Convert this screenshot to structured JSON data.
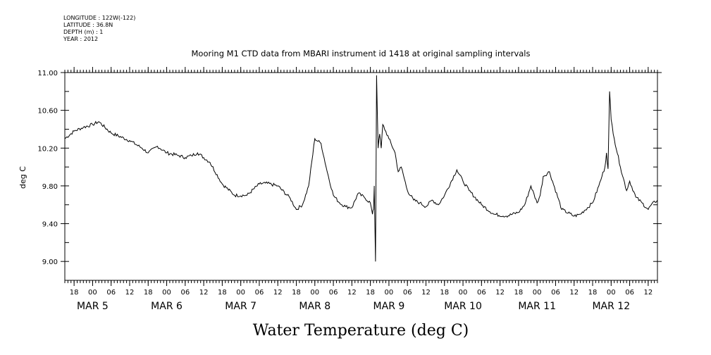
{
  "header": {
    "longitude": "LONGITUDE : 122W(-122)",
    "latitude": "LATITUDE : 36.8N",
    "depth": "DEPTH (m) : 1",
    "year": "YEAR : 2012"
  },
  "chart_data": {
    "type": "line",
    "title": "Mooring M1 CTD data from MBARI instrument id 1418 at original sampling intervals",
    "xlabel": "Water Temperature (deg C)",
    "ylabel": "deg C",
    "ylim": [
      8.8,
      11.0
    ],
    "xlim": [
      "2012-03-04T15:00",
      "2012-03-12T15:00"
    ],
    "y_ticks": [
      9.0,
      9.4,
      9.8,
      10.2,
      10.6,
      11.0
    ],
    "y_tick_labels": [
      "9.00",
      "9.40",
      "9.80",
      "10.20",
      "10.60",
      "11.00"
    ],
    "x_hour_ticks": [
      "18",
      "00",
      "06",
      "12",
      "18",
      "00",
      "06",
      "12",
      "18",
      "00",
      "06",
      "12",
      "18",
      "00",
      "06",
      "12",
      "18",
      "00",
      "06",
      "12",
      "18",
      "00",
      "06",
      "12",
      "18",
      "00",
      "06",
      "12",
      "18",
      "00",
      "06",
      "12"
    ],
    "x_day_labels": [
      "MAR  5",
      "MAR  6",
      "MAR  7",
      "MAR  8",
      "MAR  9",
      "MAR 10",
      "MAR 11",
      "MAR 12"
    ],
    "grid": false,
    "series": [
      {
        "x": [
          "2012-03-04T15:00",
          "2012-03-04T18:00",
          "2012-03-04T21:00",
          "2012-03-05T00:00",
          "2012-03-05T02:00",
          "2012-03-05T06:00",
          "2012-03-05T12:00",
          "2012-03-05T16:00",
          "2012-03-05T18:00",
          "2012-03-05T21:00",
          "2012-03-06T00:00",
          "2012-03-06T04:00",
          "2012-03-06T06:00",
          "2012-03-06T08:00",
          "2012-03-06T10:00",
          "2012-03-06T14:00",
          "2012-03-06T18:00",
          "2012-03-06T22:00",
          "2012-03-07T02:00",
          "2012-03-07T06:00",
          "2012-03-07T08:00",
          "2012-03-07T12:00",
          "2012-03-07T16:00",
          "2012-03-07T18:00",
          "2012-03-07T20:00",
          "2012-03-07T22:00",
          "2012-03-08T00:00",
          "2012-03-08T02:00",
          "2012-03-08T04:00",
          "2012-03-08T06:00",
          "2012-03-08T08:00",
          "2012-03-08T10:00",
          "2012-03-08T12:00",
          "2012-03-08T14:00",
          "2012-03-08T16:00",
          "2012-03-08T18:00",
          "2012-03-08T18:40",
          "2012-03-08T19:00",
          "2012-03-08T19:15",
          "2012-03-08T19:40",
          "2012-03-08T20:00",
          "2012-03-08T20:30",
          "2012-03-08T21:00",
          "2012-03-08T21:30",
          "2012-03-08T22:00",
          "2012-03-09T00:00",
          "2012-03-09T02:00",
          "2012-03-09T03:00",
          "2012-03-09T04:00",
          "2012-03-09T06:00",
          "2012-03-09T08:00",
          "2012-03-09T10:00",
          "2012-03-09T12:00",
          "2012-03-09T14:00",
          "2012-03-09T16:00",
          "2012-03-09T18:00",
          "2012-03-09T22:00",
          "2012-03-10T00:00",
          "2012-03-10T02:00",
          "2012-03-10T06:00",
          "2012-03-10T10:00",
          "2012-03-10T14:00",
          "2012-03-10T18:00",
          "2012-03-10T20:00",
          "2012-03-10T22:00",
          "2012-03-11T00:00",
          "2012-03-11T01:00",
          "2012-03-11T02:00",
          "2012-03-11T04:00",
          "2012-03-11T08:00",
          "2012-03-11T12:00",
          "2012-03-11T14:00",
          "2012-03-11T18:00",
          "2012-03-11T20:00",
          "2012-03-11T21:00",
          "2012-03-11T22:00",
          "2012-03-11T22:30",
          "2012-03-11T23:00",
          "2012-03-11T23:30",
          "2012-03-12T00:00",
          "2012-03-12T01:00",
          "2012-03-12T03:00",
          "2012-03-12T05:00",
          "2012-03-12T06:00",
          "2012-03-12T08:00",
          "2012-03-12T10:00",
          "2012-03-12T12:00",
          "2012-03-12T13:00",
          "2012-03-12T15:00"
        ],
        "values": [
          10.3,
          10.38,
          10.42,
          10.45,
          10.48,
          10.36,
          10.28,
          10.2,
          10.15,
          10.22,
          10.15,
          10.12,
          10.1,
          10.12,
          10.15,
          10.05,
          9.82,
          9.7,
          9.7,
          9.82,
          9.83,
          9.8,
          9.67,
          9.55,
          9.6,
          9.8,
          10.3,
          10.25,
          9.95,
          9.7,
          9.62,
          9.58,
          9.57,
          9.72,
          9.68,
          9.62,
          9.5,
          9.55,
          9.8,
          9.0,
          10.97,
          10.2,
          10.35,
          10.2,
          10.45,
          10.3,
          10.15,
          9.95,
          10.0,
          9.75,
          9.65,
          9.62,
          9.58,
          9.65,
          9.6,
          9.7,
          9.97,
          9.85,
          9.75,
          9.6,
          9.5,
          9.48,
          9.52,
          9.6,
          9.8,
          9.62,
          9.7,
          9.9,
          9.95,
          9.55,
          9.48,
          9.5,
          9.62,
          9.8,
          9.9,
          10.0,
          10.15,
          9.98,
          10.8,
          10.5,
          10.3,
          10.0,
          9.75,
          9.85,
          9.68,
          9.62,
          9.55,
          9.6,
          9.65
        ]
      }
    ]
  }
}
